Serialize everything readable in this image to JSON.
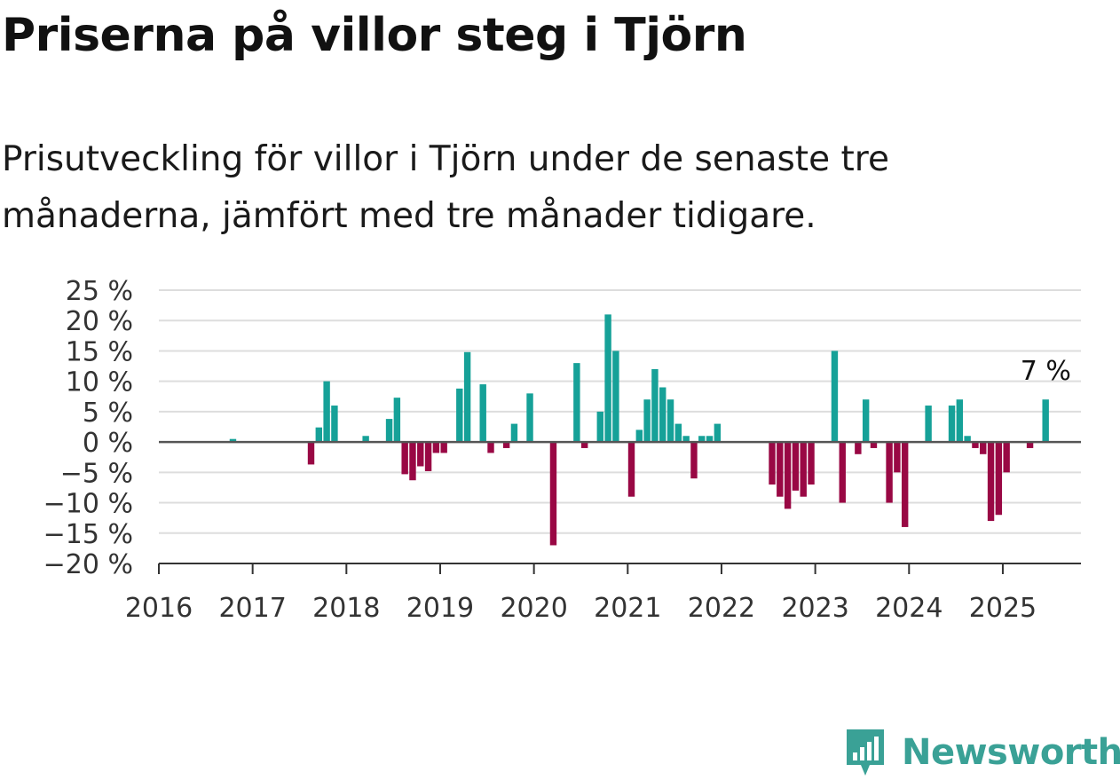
{
  "title": "Priserna på villor steg i Tjörn",
  "subtitle": "Prisutveckling för villor i Tjörn under de senaste tre månaderna, jämfört med tre månader tidigare.",
  "brand": {
    "name": "Newsworthy",
    "icon": "newsworthy-logo-icon"
  },
  "colors": {
    "positive": "#16a198",
    "negative": "#990844",
    "grid": "#dddddd",
    "zero_line": "#555555",
    "brand": "#3aa196"
  },
  "chart_data": {
    "type": "bar",
    "title": "Priserna på villor steg i Tjörn",
    "ylim": [
      -20,
      25
    ],
    "y_ticks": [
      25,
      20,
      15,
      10,
      5,
      0,
      -5,
      -10,
      -15,
      -20
    ],
    "y_tick_labels": [
      "25 %",
      "20 %",
      "15 %",
      "10 %",
      "5 %",
      "0 %",
      "−5 %",
      "−10 %",
      "−15 %",
      "−20 %"
    ],
    "x_range": [
      "2016-01",
      "2025-10"
    ],
    "x_tick_labels": [
      "2016",
      "2017",
      "2018",
      "2019",
      "2020",
      "2021",
      "2022",
      "2023",
      "2024",
      "2025"
    ],
    "grid": true,
    "annotation": {
      "text": "7 %",
      "date": "2025-06"
    },
    "bars": [
      {
        "date": "2016-10",
        "value": 0.5
      },
      {
        "date": "2017-08",
        "value": -3.7
      },
      {
        "date": "2017-09",
        "value": 2.4
      },
      {
        "date": "2017-10",
        "value": 10
      },
      {
        "date": "2017-11",
        "value": 6
      },
      {
        "date": "2018-03",
        "value": 1
      },
      {
        "date": "2018-06",
        "value": 3.8
      },
      {
        "date": "2018-07",
        "value": 7.3
      },
      {
        "date": "2018-08",
        "value": -5.3
      },
      {
        "date": "2018-09",
        "value": -6.3
      },
      {
        "date": "2018-10",
        "value": -4
      },
      {
        "date": "2018-11",
        "value": -4.8
      },
      {
        "date": "2018-12",
        "value": -1.8
      },
      {
        "date": "2019-01",
        "value": -1.8
      },
      {
        "date": "2019-03",
        "value": 8.8
      },
      {
        "date": "2019-04",
        "value": 14.8
      },
      {
        "date": "2019-06",
        "value": 9.5
      },
      {
        "date": "2019-07",
        "value": -1.8
      },
      {
        "date": "2019-09",
        "value": -1
      },
      {
        "date": "2019-10",
        "value": 3
      },
      {
        "date": "2019-12",
        "value": 8
      },
      {
        "date": "2020-03",
        "value": -17
      },
      {
        "date": "2020-06",
        "value": 13
      },
      {
        "date": "2020-07",
        "value": -1
      },
      {
        "date": "2020-09",
        "value": 5
      },
      {
        "date": "2020-10",
        "value": 21
      },
      {
        "date": "2020-11",
        "value": 15
      },
      {
        "date": "2021-01",
        "value": -9
      },
      {
        "date": "2021-02",
        "value": 2
      },
      {
        "date": "2021-03",
        "value": 7
      },
      {
        "date": "2021-04",
        "value": 12
      },
      {
        "date": "2021-05",
        "value": 9
      },
      {
        "date": "2021-06",
        "value": 7
      },
      {
        "date": "2021-07",
        "value": 3
      },
      {
        "date": "2021-08",
        "value": 1
      },
      {
        "date": "2021-09",
        "value": -6
      },
      {
        "date": "2021-10",
        "value": 1
      },
      {
        "date": "2021-11",
        "value": 1
      },
      {
        "date": "2021-12",
        "value": 3
      },
      {
        "date": "2022-07",
        "value": -7
      },
      {
        "date": "2022-08",
        "value": -9
      },
      {
        "date": "2022-09",
        "value": -11
      },
      {
        "date": "2022-10",
        "value": -8
      },
      {
        "date": "2022-11",
        "value": -9
      },
      {
        "date": "2022-12",
        "value": -7
      },
      {
        "date": "2023-03",
        "value": 15
      },
      {
        "date": "2023-04",
        "value": -10
      },
      {
        "date": "2023-06",
        "value": -2
      },
      {
        "date": "2023-07",
        "value": 7
      },
      {
        "date": "2023-08",
        "value": -1
      },
      {
        "date": "2023-10",
        "value": -10
      },
      {
        "date": "2023-11",
        "value": -5
      },
      {
        "date": "2023-12",
        "value": -14
      },
      {
        "date": "2024-03",
        "value": 6
      },
      {
        "date": "2024-06",
        "value": 6
      },
      {
        "date": "2024-07",
        "value": 7
      },
      {
        "date": "2024-08",
        "value": 1
      },
      {
        "date": "2024-09",
        "value": -1
      },
      {
        "date": "2024-10",
        "value": -2
      },
      {
        "date": "2024-11",
        "value": -13
      },
      {
        "date": "2024-12",
        "value": -12
      },
      {
        "date": "2025-01",
        "value": -5
      },
      {
        "date": "2025-04",
        "value": -1
      },
      {
        "date": "2025-06",
        "value": 7
      }
    ]
  }
}
